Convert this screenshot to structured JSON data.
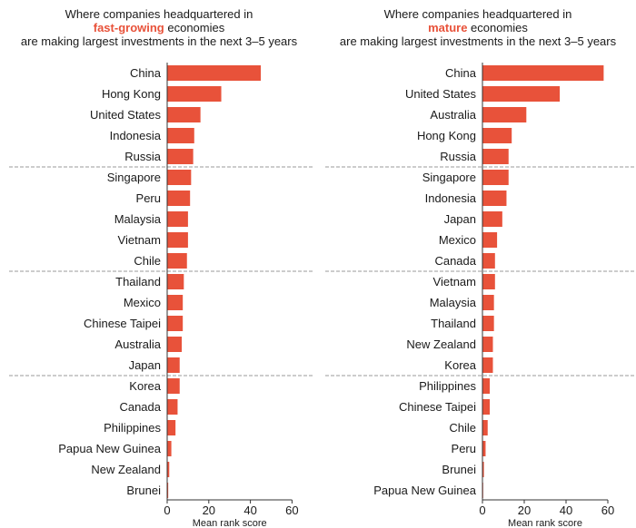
{
  "colors": {
    "bar": "#e8523a",
    "axis": "#333333",
    "divider": "#999999",
    "highlight": "#e8523a"
  },
  "chart_data": [
    {
      "type": "bar",
      "orientation": "horizontal",
      "title_line1": "Where companies headquartered in",
      "title_highlight": "fast-growing",
      "title_line2_rest": " economies",
      "title_line3": "are making largest investments in the next 3–5 years",
      "xlabel": "Mean rank score",
      "xlim": [
        0,
        60
      ],
      "xticks": [
        "0",
        "20",
        "40",
        "60"
      ],
      "group_dividers_after": [
        5,
        10,
        15
      ],
      "categories": [
        "China",
        "Hong Kong",
        "United States",
        "Indonesia",
        "Russia",
        "Singapore",
        "Peru",
        "Malaysia",
        "Vietnam",
        "Chile",
        "Thailand",
        "Mexico",
        "Chinese Taipei",
        "Australia",
        "Japan",
        "Korea",
        "Canada",
        "Philippines",
        "Papua New Guinea",
        "New Zealand",
        "Brunei"
      ],
      "values": [
        45,
        26,
        16,
        13,
        12.5,
        11.5,
        11,
        10,
        10,
        9.5,
        8,
        7.5,
        7.5,
        7,
        6,
        6,
        5,
        4,
        2,
        1,
        0.5
      ]
    },
    {
      "type": "bar",
      "orientation": "horizontal",
      "title_line1": "Where companies headquartered in",
      "title_highlight": "mature",
      "title_line2_rest": " economies",
      "title_line3": "are making largest investments in the next 3–5 years",
      "xlabel": "Mean rank score",
      "xlim": [
        0,
        60
      ],
      "xticks": [
        "0",
        "20",
        "40",
        "60"
      ],
      "group_dividers_after": [
        5,
        10,
        15
      ],
      "categories": [
        "China",
        "United States",
        "Australia",
        "Hong Kong",
        "Russia",
        "Singapore",
        "Indonesia",
        "Japan",
        "Mexico",
        "Canada",
        "Vietnam",
        "Malaysia",
        "Thailand",
        "New Zealand",
        "Korea",
        "Philippines",
        "Chinese Taipei",
        "Chile",
        "Peru",
        "Brunei",
        "Papua New Guinea"
      ],
      "values": [
        58,
        37,
        21,
        14,
        12.5,
        12.5,
        11.5,
        9.5,
        7,
        6,
        6,
        5.5,
        5.5,
        5,
        5,
        3.5,
        3.5,
        2.5,
        1.5,
        0.7,
        0.3
      ]
    }
  ]
}
